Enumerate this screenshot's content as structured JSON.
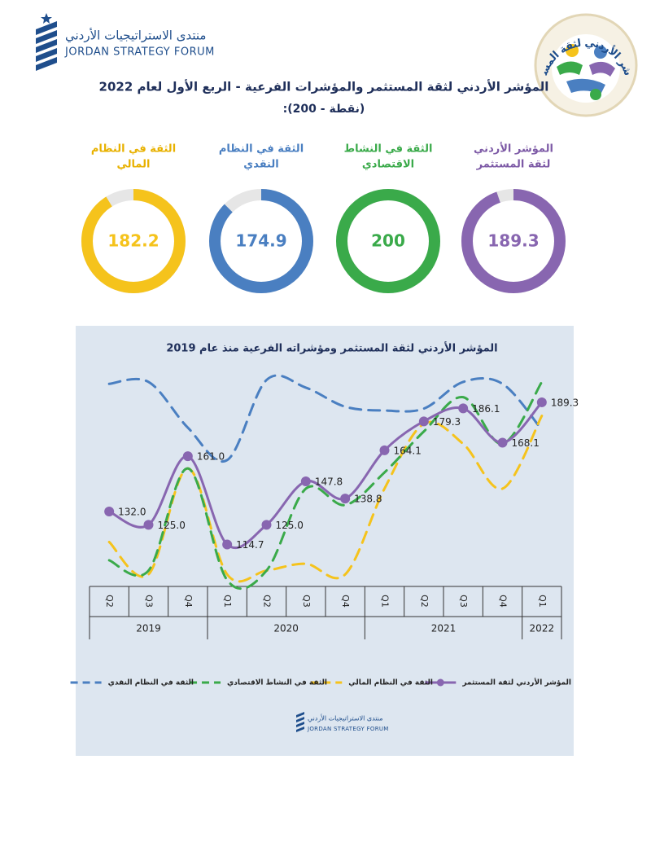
{
  "header": {
    "org_ar": "منتدى الاستراتيجيات الأردني",
    "org_en": "JORDAN STRATEGY FORUM",
    "badge": "المؤشر الأردني لثقة المستثمر",
    "title": "المؤشر الأردني لثقة المستثمر والمؤشرات الفرعية - الربع الأول لعام 2022",
    "subtitle": "(نقطة - 200):"
  },
  "chart_data": [
    {
      "type": "donut",
      "label_lines": [
        "الثقة في النظام",
        "المالي"
      ],
      "value": 182.2,
      "color": "#f5c31c",
      "label_color": "#e8b100",
      "ylim": [
        0,
        200
      ]
    },
    {
      "type": "donut",
      "label_lines": [
        "الثقة في النظام",
        "النقدي"
      ],
      "value": 174.9,
      "color": "#4a7fc1",
      "label_color": "#4a7fc1",
      "ylim": [
        0,
        200
      ]
    },
    {
      "type": "donut",
      "label_lines": [
        "الثقة في النشاط",
        "الاقتصادي"
      ],
      "value": 200,
      "color": "#3aaa4a",
      "label_color": "#3aaa4a",
      "ylim": [
        0,
        200
      ]
    },
    {
      "type": "donut",
      "label_lines": [
        "المؤشر الأردني",
        "لثقة المستثمر"
      ],
      "value": 189.3,
      "color": "#8866b0",
      "label_color": "#7d5aa6",
      "ylim": [
        0,
        200
      ]
    },
    {
      "type": "line",
      "title": "المؤشر الأردني لثقة المستثمر ومؤشراته الفرعية منذ عام 2019",
      "categories": [
        "Q2",
        "Q3",
        "Q4",
        "Q1",
        "Q2",
        "Q3",
        "Q4",
        "Q1",
        "Q2",
        "Q3",
        "Q4",
        "Q1"
      ],
      "category_groups": [
        "2019",
        "2019",
        "2019",
        "2020",
        "2020",
        "2020",
        "2020",
        "2021",
        "2021",
        "2021",
        "2021",
        "2022"
      ],
      "ylim": [
        95,
        210
      ],
      "series": [
        {
          "name": "المؤشر الأردني لثقة المستثمر",
          "color": "#8866b0",
          "style": "solid",
          "markers": true,
          "values": [
            132.0,
            125.0,
            161.0,
            114.7,
            125.0,
            147.8,
            138.8,
            164.1,
            179.3,
            186.1,
            168.1,
            189.3
          ],
          "value_labels": [
            "132.0",
            "125.0",
            "161.0",
            "114.7",
            "125.0",
            "147.8",
            "138.8",
            "164.1",
            "179.3",
            "186.1",
            "168.1",
            "189.3"
          ]
        },
        {
          "name": "الثقة في النظام المالي",
          "color": "#f5c31c",
          "style": "dashed",
          "markers": false,
          "values": [
            116,
            99,
            154.6,
            99,
            101,
            104.6,
            99,
            144,
            178,
            167.5,
            144,
            182.2
          ]
        },
        {
          "name": "الثقة في النشاط الاقتصادي",
          "color": "#3aaa4a",
          "style": "dashed",
          "markers": false,
          "values": [
            106.4,
            101,
            154.6,
            96,
            101,
            144,
            135.4,
            152.5,
            174,
            192,
            167.5,
            200
          ]
        },
        {
          "name": "الثقة في النظام النقدي",
          "color": "#4a7fc1",
          "style": "dashed",
          "markers": false,
          "values": [
            199,
            200,
            176,
            159,
            201,
            197,
            187,
            185,
            186,
            200,
            199,
            174.9
          ]
        }
      ]
    }
  ]
}
